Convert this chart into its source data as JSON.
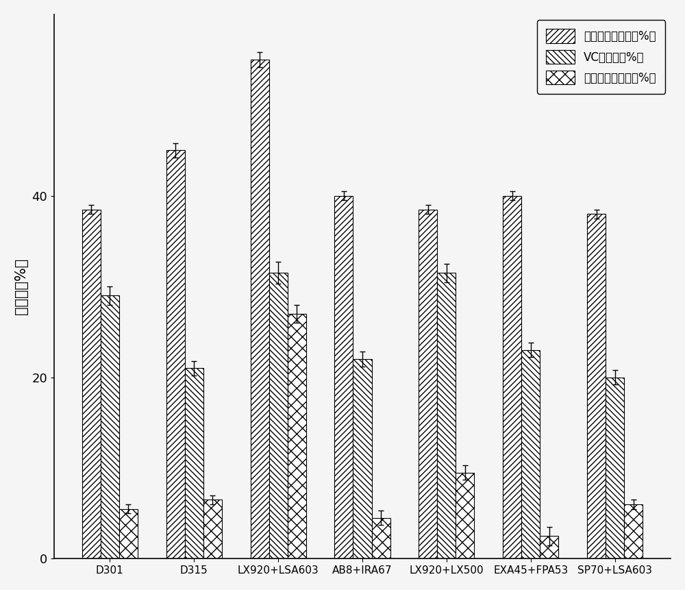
{
  "categories": [
    "D301",
    "D315",
    "LX920+LSA603",
    "AB8+IRA67",
    "LX920+LX500",
    "EXA45+FPA53",
    "SP70+LSA603"
  ],
  "series": [
    {
      "label": "可滴定酸脱除率（%）",
      "values": [
        38.5,
        45.0,
        55.0,
        40.0,
        38.5,
        40.0,
        38.0
      ],
      "errors": [
        0.5,
        0.8,
        0.8,
        0.5,
        0.5,
        0.5,
        0.5
      ]
    },
    {
      "label": "VC脱除率（%）",
      "values": [
        29.0,
        21.0,
        31.5,
        22.0,
        31.5,
        23.0,
        20.0
      ],
      "errors": [
        1.0,
        0.8,
        1.2,
        0.8,
        1.0,
        0.8,
        0.8
      ]
    },
    {
      "label": "柠機苦素脱除率（%）",
      "values": [
        5.5,
        6.5,
        27.0,
        4.5,
        9.5,
        2.5,
        6.0
      ],
      "errors": [
        0.5,
        0.5,
        1.0,
        0.8,
        0.8,
        1.0,
        0.5
      ]
    }
  ],
  "legend_labels": [
    "可滴定酸脱除率（%）",
    "VC脱除率（%）",
    "柠機苦素脱除率（%）"
  ],
  "ylabel": "脱除率（%）",
  "ylim": [
    0,
    60
  ],
  "yticks": [
    0,
    20,
    40
  ],
  "bar_width": 0.22,
  "figsize": [
    10.0,
    8.61
  ],
  "dpi": 100,
  "background_color": "#ffffff"
}
